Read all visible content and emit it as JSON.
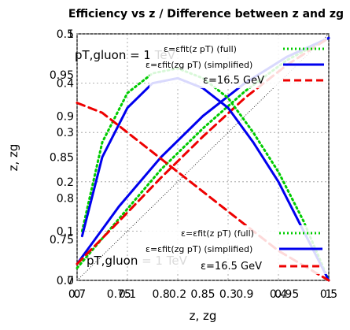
{
  "chart_data": [
    {
      "type": "line",
      "title": "Efficiency vs z",
      "xlabel": "z",
      "ylabel": "",
      "xlim": [
        0.7,
        1.0
      ],
      "ylim": [
        0.7,
        1.0
      ],
      "x_ticks": [
        "0.7",
        "0.75",
        "0.8",
        "0.85",
        "0.9",
        "0.95",
        "1"
      ],
      "y_ticks": [
        "0.7",
        "0.75",
        "0.8",
        "0.85",
        "0.9",
        "0.95",
        "1"
      ],
      "annotation": "pT,gluon = 1 TeV",
      "grid": true,
      "legend_position": "top-right",
      "series": [
        {
          "name": "ε=εfit(z pT) (full)",
          "color": "#00cc00",
          "style": "dotted",
          "x": [
            0.7,
            0.75,
            0.8,
            0.85,
            0.9,
            0.95,
            1.0
          ],
          "y": [
            0.715,
            0.775,
            0.835,
            0.885,
            0.93,
            0.968,
            0.995
          ]
        },
        {
          "name": "ε=εfit(zg pT) (simplified)",
          "color": "#0000ee",
          "style": "solid",
          "x": [
            0.7,
            0.75,
            0.8,
            0.85,
            0.9,
            0.95,
            1.0
          ],
          "y": [
            0.72,
            0.79,
            0.85,
            0.9,
            0.94,
            0.972,
            0.995
          ]
        },
        {
          "name": "ε=16.5 GeV",
          "color": "#ee0000",
          "style": "dashed",
          "x": [
            0.7,
            0.75,
            0.8,
            0.85,
            0.9,
            0.95,
            1.0
          ],
          "y": [
            0.72,
            0.772,
            0.825,
            0.875,
            0.922,
            0.962,
            0.995
          ]
        }
      ]
    },
    {
      "type": "line",
      "title": "Difference between z and zg",
      "xlabel": "zg",
      "ylabel": "z",
      "xlim": [
        0.0,
        0.5
      ],
      "ylim": [
        0.0,
        0.5
      ],
      "x_ticks": [
        "0",
        "0.1",
        "0.2",
        "0.3",
        "0.4",
        "0.5"
      ],
      "y_ticks": [
        "0",
        "0.1",
        "0.2",
        "0.3",
        "0.4",
        "0.5"
      ],
      "annotation": "pT,gluon = 1 TeV",
      "grid": true,
      "legend_position": "bottom-right",
      "series": [
        {
          "name": "ε=εfit(z pT) (full)",
          "color": "#00cc00",
          "style": "dotted",
          "x": [
            0.01,
            0.05,
            0.1,
            0.15,
            0.2,
            0.25,
            0.3,
            0.35,
            0.4,
            0.45,
            0.5
          ],
          "y": [
            0.1,
            0.28,
            0.38,
            0.42,
            0.43,
            0.41,
            0.37,
            0.3,
            0.22,
            0.12,
            0.0
          ]
        },
        {
          "name": "ε=εfit(zg pT) (simplified)",
          "color": "#0000ee",
          "style": "solid",
          "x": [
            0.01,
            0.05,
            0.1,
            0.15,
            0.2,
            0.25,
            0.3,
            0.35,
            0.4,
            0.45,
            0.5
          ],
          "y": [
            0.09,
            0.25,
            0.35,
            0.4,
            0.41,
            0.39,
            0.35,
            0.28,
            0.2,
            0.1,
            0.0
          ]
        },
        {
          "name": "ε=16.5 GeV",
          "color": "#ee0000",
          "style": "dashed",
          "x": [
            0.0,
            0.05,
            0.1,
            0.15,
            0.2,
            0.25,
            0.3,
            0.35,
            0.4,
            0.45,
            0.5
          ],
          "y": [
            0.36,
            0.34,
            0.3,
            0.26,
            0.22,
            0.18,
            0.14,
            0.1,
            0.06,
            0.03,
            0.0
          ]
        }
      ]
    }
  ],
  "figure": {
    "title_line": "Efficiency vs z / Difference between z and zg",
    "ylabel_combined": "z, zg",
    "xlabel_combined": "z, zg",
    "annotation_top": "pT,gluon = 1 TeV",
    "annotation_bottom": "pT,gluon = 1 TeV"
  }
}
